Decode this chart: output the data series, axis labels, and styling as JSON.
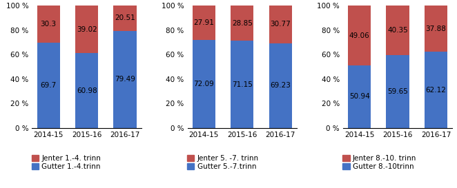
{
  "charts": [
    {
      "categories": [
        "2014-15",
        "2015-16",
        "2016-17"
      ],
      "boys": [
        69.7,
        60.98,
        79.49
      ],
      "girls": [
        30.3,
        39.02,
        20.51
      ],
      "legend_boys": "Gutter 1.-4.trinn",
      "legend_girls": "Jenter 1.-4. trinn"
    },
    {
      "categories": [
        "2014-15",
        "2015-16",
        "2016-17"
      ],
      "boys": [
        72.09,
        71.15,
        69.23
      ],
      "girls": [
        27.91,
        28.85,
        30.77
      ],
      "legend_boys": "Gutter 5.-7.trinn",
      "legend_girls": "Jenter 5. -7. trinn"
    },
    {
      "categories": [
        "2014-15",
        "2015-16",
        "2016-17"
      ],
      "boys": [
        50.94,
        59.65,
        62.12
      ],
      "girls": [
        49.06,
        40.35,
        37.88
      ],
      "legend_boys": "Gutter 8.-10trinn",
      "legend_girls": "Jenter 8.-10. trinn"
    }
  ],
  "boy_color": "#4472C4",
  "girl_color": "#C0504D",
  "bar_width": 0.6,
  "ylim": [
    0,
    100
  ],
  "yticks": [
    0,
    20,
    40,
    60,
    80,
    100
  ],
  "yticklabels": [
    "0 %",
    "20 %",
    "40 %",
    "60 %",
    "80 %",
    "100 %"
  ],
  "label_fontsize": 7.5,
  "legend_fontsize": 7.5,
  "tick_fontsize": 7.5,
  "figwidth": 6.62,
  "figheight": 2.73,
  "dpi": 100
}
